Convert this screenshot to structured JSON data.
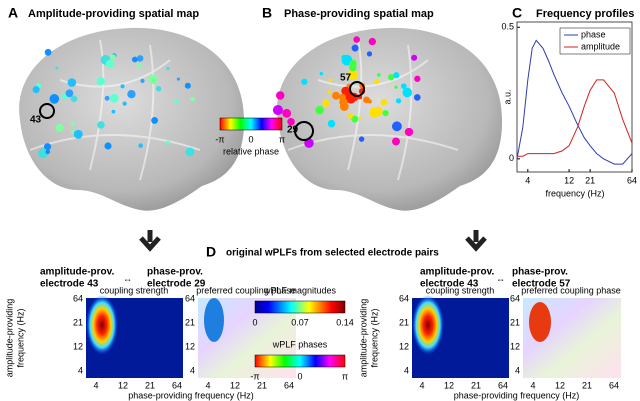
{
  "panels": {
    "A": {
      "label": "A",
      "title": "Amplitude-providing spatial map",
      "electrode": "43"
    },
    "B": {
      "label": "B",
      "title": "Phase-providing spatial map",
      "electrodes": [
        "57",
        "29"
      ],
      "colorbar": {
        "ticks": [
          "-π",
          "0",
          "π"
        ],
        "label": "relative phase"
      }
    },
    "D": {
      "label": "D",
      "title": "original wPLFs from selected electrode pairs",
      "pairs": [
        {
          "amplitude": [
            "amplitude-prov.",
            "electrode 43"
          ],
          "phase": [
            "phase-prov.",
            "electrode 29"
          ]
        },
        {
          "amplitude": [
            "amplitude-prov.",
            "electrode 43"
          ],
          "phase": [
            "phase-prov.",
            "electrode 57"
          ]
        }
      ],
      "subtitles": [
        "coupling strength",
        "preferred coupling phase"
      ],
      "ylabel": [
        "amplitude-providing",
        "frequency (Hz)"
      ],
      "xlabel": "phase-providing frequency (Hz)",
      "ticks": [
        "4",
        "12",
        "21",
        "64"
      ],
      "magnitude_bar": {
        "title": "wPLF magnitudes",
        "ticks": [
          0,
          0.07,
          0.14
        ]
      },
      "phase_bar": {
        "title": "wPLF phases",
        "ticks": [
          "-π",
          "0",
          "π"
        ]
      }
    }
  },
  "chart_data": {
    "type": "line",
    "label": "C",
    "title": "Frequency profiles",
    "x_label": "frequency (Hz)",
    "y_label": "a.u.",
    "x": [
      3,
      3.5,
      4,
      4.5,
      5,
      6,
      7,
      8,
      10,
      12,
      15,
      18,
      21,
      25,
      30,
      40,
      50,
      64
    ],
    "series": [
      {
        "name": "phase",
        "color": "#2a3fb0",
        "values": [
          0,
          0.12,
          0.3,
          0.42,
          0.45,
          0.42,
          0.37,
          0.32,
          0.25,
          0.2,
          0.13,
          0.08,
          0.05,
          0.02,
          0,
          -0.02,
          -0.02,
          0.02
        ]
      },
      {
        "name": "amplitude",
        "color": "#d42020",
        "values": [
          0.01,
          0.01,
          0.02,
          0.02,
          0.02,
          0.02,
          0.02,
          0.02,
          0.03,
          0.05,
          0.12,
          0.2,
          0.26,
          0.3,
          0.3,
          0.25,
          0.15,
          0.06
        ]
      }
    ],
    "xscale": "log",
    "xlim": [
      3,
      64
    ],
    "ylim": [
      -0.05,
      0.52
    ],
    "xticks": [
      4,
      12,
      21,
      64
    ],
    "yticks": [
      0,
      0.5
    ],
    "legend": "upper right"
  }
}
